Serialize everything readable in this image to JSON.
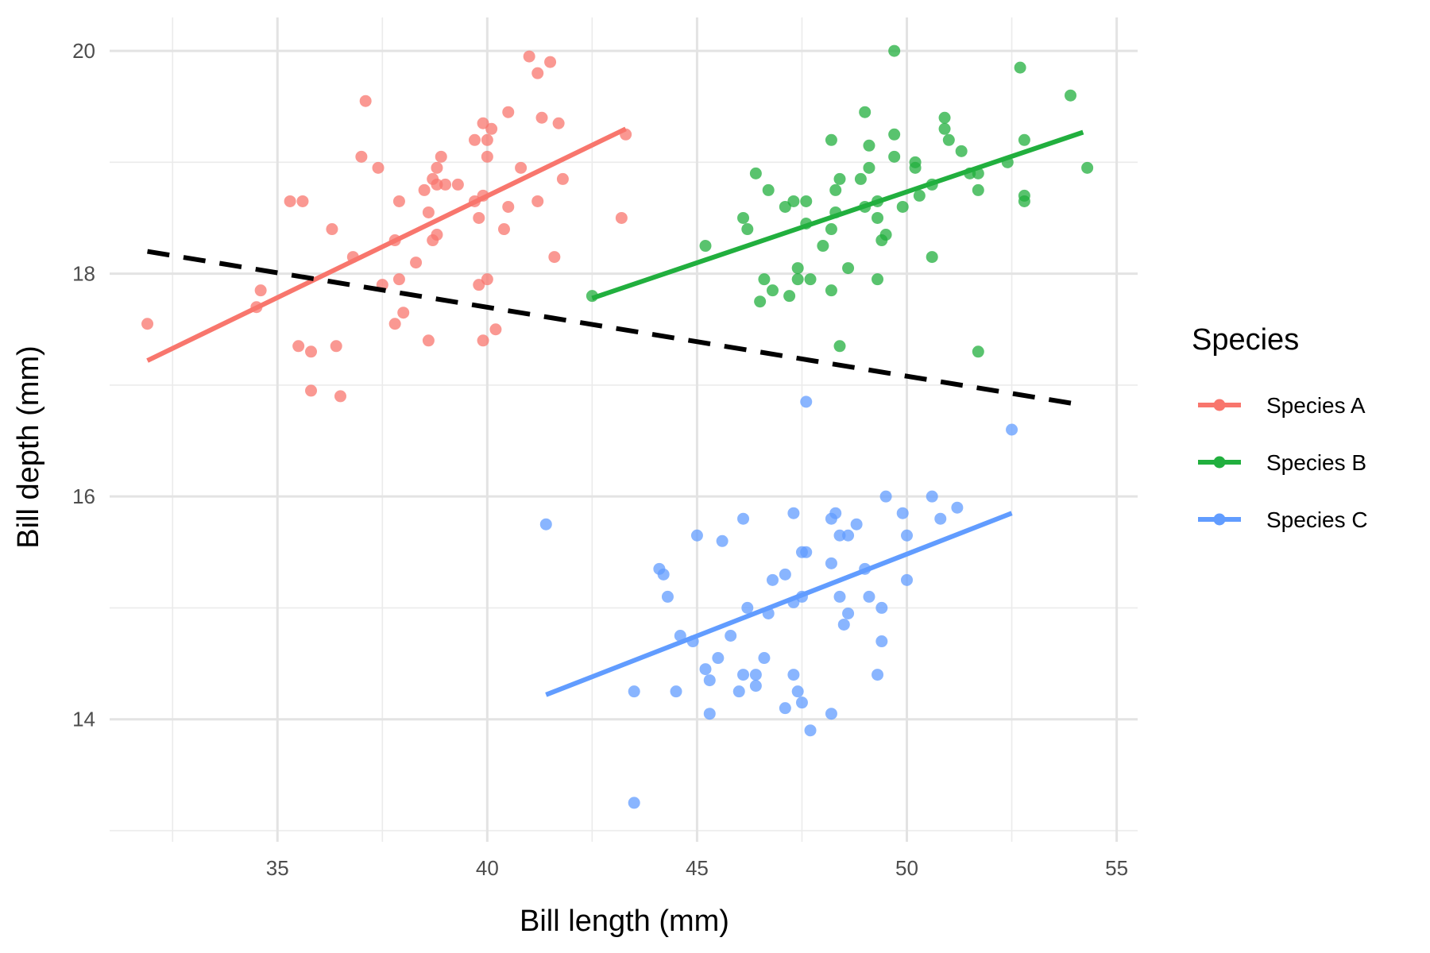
{
  "chart_data": {
    "type": "scatter",
    "xlabel": "Bill length (mm)",
    "ylabel": "Bill depth (mm)",
    "xlim": [
      31,
      55.5
    ],
    "ylim": [
      12.9,
      20.3
    ],
    "x_ticks": [
      35,
      40,
      45,
      50,
      55
    ],
    "y_ticks": [
      14,
      16,
      18,
      20
    ],
    "grid": true,
    "legend": {
      "title": "Species",
      "placement": "right"
    },
    "series": [
      {
        "name": "Species A",
        "color": "#F8766D",
        "points": [
          [
            31.9,
            17.55
          ],
          [
            34.5,
            17.7
          ],
          [
            34.6,
            17.85
          ],
          [
            35.3,
            18.65
          ],
          [
            35.6,
            18.65
          ],
          [
            35.5,
            17.35
          ],
          [
            35.8,
            17.3
          ],
          [
            35.8,
            16.95
          ],
          [
            36.3,
            18.4
          ],
          [
            36.4,
            17.35
          ],
          [
            36.5,
            16.9
          ],
          [
            36.8,
            18.15
          ],
          [
            37.0,
            19.05
          ],
          [
            37.1,
            19.55
          ],
          [
            37.4,
            18.95
          ],
          [
            37.5,
            17.9
          ],
          [
            37.8,
            18.3
          ],
          [
            37.8,
            17.55
          ],
          [
            37.9,
            17.95
          ],
          [
            37.9,
            18.65
          ],
          [
            38.0,
            17.65
          ],
          [
            38.3,
            18.1
          ],
          [
            38.5,
            18.75
          ],
          [
            38.6,
            18.55
          ],
          [
            38.6,
            17.4
          ],
          [
            38.7,
            18.3
          ],
          [
            38.8,
            18.35
          ],
          [
            38.7,
            18.85
          ],
          [
            38.8,
            18.95
          ],
          [
            38.8,
            18.8
          ],
          [
            38.9,
            19.05
          ],
          [
            39.0,
            18.8
          ],
          [
            39.3,
            18.8
          ],
          [
            39.7,
            19.2
          ],
          [
            39.8,
            18.5
          ],
          [
            39.7,
            18.65
          ],
          [
            39.8,
            17.9
          ],
          [
            39.9,
            18.7
          ],
          [
            39.9,
            17.4
          ],
          [
            39.9,
            19.35
          ],
          [
            40.0,
            19.2
          ],
          [
            40.0,
            19.05
          ],
          [
            40.1,
            19.3
          ],
          [
            40.0,
            17.95
          ],
          [
            40.2,
            17.5
          ],
          [
            40.4,
            18.4
          ],
          [
            40.5,
            18.6
          ],
          [
            40.5,
            19.45
          ],
          [
            40.8,
            18.95
          ],
          [
            41.0,
            19.95
          ],
          [
            41.2,
            19.8
          ],
          [
            41.2,
            18.65
          ],
          [
            41.3,
            19.4
          ],
          [
            41.5,
            19.9
          ],
          [
            41.6,
            18.15
          ],
          [
            41.7,
            19.35
          ],
          [
            41.8,
            18.85
          ],
          [
            43.2,
            18.5
          ],
          [
            43.3,
            19.25
          ]
        ],
        "fit": [
          [
            31.9,
            17.22
          ],
          [
            43.3,
            19.3
          ]
        ]
      },
      {
        "name": "Species B",
        "color": "#21AF3E",
        "points": [
          [
            42.5,
            17.8
          ],
          [
            45.2,
            18.25
          ],
          [
            46.1,
            18.5
          ],
          [
            46.2,
            18.4
          ],
          [
            46.4,
            18.9
          ],
          [
            46.5,
            17.75
          ],
          [
            46.6,
            17.95
          ],
          [
            46.7,
            18.75
          ],
          [
            46.8,
            17.85
          ],
          [
            47.1,
            18.6
          ],
          [
            47.2,
            17.8
          ],
          [
            47.3,
            18.65
          ],
          [
            47.4,
            18.05
          ],
          [
            47.4,
            17.95
          ],
          [
            47.6,
            18.65
          ],
          [
            47.6,
            18.45
          ],
          [
            47.7,
            17.95
          ],
          [
            48.0,
            18.25
          ],
          [
            48.2,
            19.2
          ],
          [
            48.2,
            17.85
          ],
          [
            48.3,
            18.55
          ],
          [
            48.2,
            18.4
          ],
          [
            48.3,
            18.75
          ],
          [
            48.4,
            17.35
          ],
          [
            48.4,
            18.85
          ],
          [
            48.6,
            18.05
          ],
          [
            48.9,
            18.85
          ],
          [
            49.0,
            18.6
          ],
          [
            49.1,
            18.95
          ],
          [
            49.1,
            19.15
          ],
          [
            49.0,
            19.45
          ],
          [
            49.3,
            18.65
          ],
          [
            49.3,
            18.5
          ],
          [
            49.3,
            17.95
          ],
          [
            49.4,
            18.3
          ],
          [
            49.5,
            18.35
          ],
          [
            49.7,
            19.25
          ],
          [
            49.7,
            19.05
          ],
          [
            49.7,
            20.0
          ],
          [
            49.9,
            18.6
          ],
          [
            50.2,
            19.0
          ],
          [
            50.2,
            18.95
          ],
          [
            50.3,
            18.7
          ],
          [
            50.6,
            18.8
          ],
          [
            50.6,
            18.15
          ],
          [
            50.9,
            19.4
          ],
          [
            50.9,
            19.3
          ],
          [
            51.0,
            19.2
          ],
          [
            51.3,
            19.1
          ],
          [
            51.5,
            18.9
          ],
          [
            51.7,
            18.9
          ],
          [
            51.7,
            18.75
          ],
          [
            51.7,
            17.3
          ],
          [
            52.4,
            19.0
          ],
          [
            52.7,
            19.85
          ],
          [
            52.8,
            19.2
          ],
          [
            52.8,
            18.7
          ],
          [
            52.8,
            18.65
          ],
          [
            53.9,
            19.6
          ],
          [
            54.3,
            18.95
          ]
        ],
        "fit": [
          [
            42.5,
            17.78
          ],
          [
            54.2,
            19.27
          ]
        ]
      },
      {
        "name": "Species C",
        "color": "#619CFF",
        "points": [
          [
            41.4,
            15.75
          ],
          [
            43.5,
            14.25
          ],
          [
            43.5,
            13.25
          ],
          [
            44.1,
            15.35
          ],
          [
            44.2,
            15.3
          ],
          [
            44.3,
            15.1
          ],
          [
            44.5,
            14.25
          ],
          [
            44.6,
            14.75
          ],
          [
            44.9,
            14.7
          ],
          [
            45.0,
            15.65
          ],
          [
            45.2,
            14.45
          ],
          [
            45.3,
            14.35
          ],
          [
            45.3,
            14.05
          ],
          [
            45.5,
            14.55
          ],
          [
            45.6,
            15.6
          ],
          [
            45.8,
            14.75
          ],
          [
            46.0,
            14.25
          ],
          [
            46.1,
            14.4
          ],
          [
            46.1,
            15.8
          ],
          [
            46.2,
            15.0
          ],
          [
            46.4,
            14.4
          ],
          [
            46.4,
            14.3
          ],
          [
            46.6,
            14.55
          ],
          [
            46.7,
            14.95
          ],
          [
            46.8,
            15.25
          ],
          [
            47.1,
            14.1
          ],
          [
            47.1,
            15.3
          ],
          [
            47.3,
            15.85
          ],
          [
            47.3,
            15.05
          ],
          [
            47.3,
            14.4
          ],
          [
            47.4,
            14.25
          ],
          [
            47.5,
            15.5
          ],
          [
            47.5,
            15.1
          ],
          [
            47.5,
            14.15
          ],
          [
            47.6,
            15.5
          ],
          [
            47.6,
            16.85
          ],
          [
            47.7,
            13.9
          ],
          [
            48.2,
            15.4
          ],
          [
            48.2,
            14.05
          ],
          [
            48.2,
            15.8
          ],
          [
            48.3,
            15.85
          ],
          [
            48.4,
            15.65
          ],
          [
            48.4,
            15.1
          ],
          [
            48.5,
            14.85
          ],
          [
            48.6,
            14.95
          ],
          [
            48.6,
            15.65
          ],
          [
            48.8,
            15.75
          ],
          [
            49.0,
            15.35
          ],
          [
            49.1,
            15.1
          ],
          [
            49.3,
            14.4
          ],
          [
            49.4,
            14.7
          ],
          [
            49.4,
            15.0
          ],
          [
            49.5,
            16.0
          ],
          [
            49.9,
            15.85
          ],
          [
            50.0,
            15.65
          ],
          [
            50.0,
            15.25
          ],
          [
            50.6,
            16.0
          ],
          [
            50.8,
            15.8
          ],
          [
            51.2,
            15.9
          ],
          [
            52.5,
            16.6
          ]
        ],
        "fit": [
          [
            41.4,
            14.22
          ],
          [
            52.5,
            15.85
          ]
        ]
      }
    ],
    "overall_fit": {
      "style": "dashed",
      "color": "#000000",
      "line": [
        [
          31.9,
          18.2
        ],
        [
          54.2,
          16.82
        ]
      ]
    }
  }
}
